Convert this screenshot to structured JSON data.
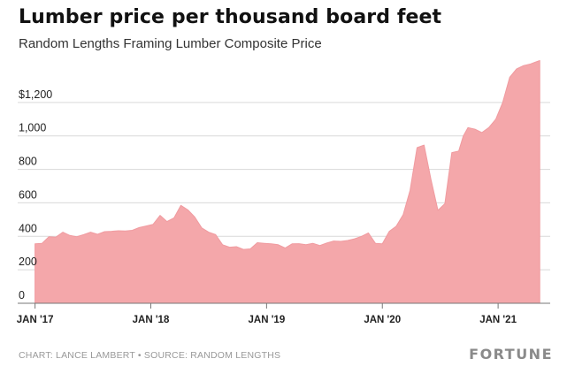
{
  "header": {
    "title": "Lumber price per thousand board feet",
    "subtitle": "Random Lengths Framing Lumber Composite Price"
  },
  "footer": {
    "source": "CHART: LANCE LAMBERT • SOURCE: RANDOM LENGTHS",
    "logo": "FORTUNE"
  },
  "chart_data": {
    "type": "area",
    "title": "Lumber price per thousand board feet",
    "subtitle": "Random Lengths Framing Lumber Composite Price",
    "color": "#f4a7aa",
    "grid": true,
    "legend": "none",
    "ylim": [
      0,
      1400
    ],
    "y_ticks": [
      {
        "value": 0,
        "label": "0"
      },
      {
        "value": 200,
        "label": "200"
      },
      {
        "value": 400,
        "label": "400"
      },
      {
        "value": 600,
        "label": "600"
      },
      {
        "value": 800,
        "label": "800"
      },
      {
        "value": 1000,
        "label": "1,000"
      },
      {
        "value": 1200,
        "label": "$1,200"
      }
    ],
    "x_range": [
      2016.85,
      2021.45
    ],
    "x_ticks": [
      {
        "value": 2017.0,
        "label": "JAN '17"
      },
      {
        "value": 2018.0,
        "label": "JAN '18"
      },
      {
        "value": 2019.0,
        "label": "JAN '19"
      },
      {
        "value": 2020.0,
        "label": "JAN '20"
      },
      {
        "value": 2021.0,
        "label": "JAN '21"
      }
    ],
    "x": [
      2017.0,
      2017.06,
      2017.12,
      2017.18,
      2017.24,
      2017.3,
      2017.36,
      2017.42,
      2017.48,
      2017.54,
      2017.6,
      2017.66,
      2017.72,
      2017.78,
      2017.84,
      2017.9,
      2017.96,
      2018.02,
      2018.08,
      2018.14,
      2018.2,
      2018.26,
      2018.32,
      2018.38,
      2018.44,
      2018.5,
      2018.56,
      2018.62,
      2018.68,
      2018.74,
      2018.8,
      2018.86,
      2018.92,
      2018.98,
      2019.04,
      2019.1,
      2019.16,
      2019.22,
      2019.28,
      2019.34,
      2019.4,
      2019.46,
      2019.52,
      2019.58,
      2019.64,
      2019.7,
      2019.76,
      2019.82,
      2019.88,
      2019.94,
      2020.0,
      2020.06,
      2020.12,
      2020.18,
      2020.24,
      2020.3,
      2020.36,
      2020.42,
      2020.48,
      2020.54,
      2020.6,
      2020.66,
      2020.7,
      2020.74,
      2020.8,
      2020.86,
      2020.92,
      2020.98,
      2021.04,
      2021.1,
      2021.16,
      2021.22,
      2021.28,
      2021.32,
      2021.36
    ],
    "y": [
      355,
      358,
      398,
      395,
      425,
      405,
      398,
      410,
      425,
      412,
      428,
      430,
      433,
      432,
      436,
      452,
      462,
      472,
      525,
      488,
      510,
      585,
      558,
      515,
      450,
      425,
      410,
      350,
      335,
      338,
      322,
      325,
      362,
      358,
      355,
      350,
      330,
      355,
      356,
      350,
      358,
      345,
      360,
      372,
      370,
      375,
      385,
      400,
      420,
      358,
      355,
      430,
      460,
      530,
      675,
      930,
      945,
      740,
      555,
      595,
      900,
      910,
      1000,
      1050,
      1040,
      1020,
      1050,
      1100,
      1200,
      1350,
      1400,
      1420,
      1430,
      1440,
      1450
    ]
  }
}
